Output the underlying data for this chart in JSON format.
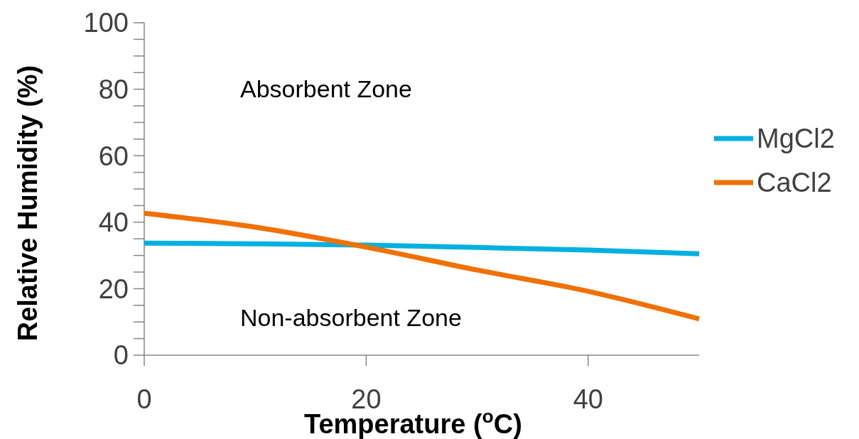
{
  "chart_data": {
    "type": "line",
    "xlabel": "Temperature ($^{o}$C)",
    "ylabel": "Relative Humidity (%)",
    "x": [
      0,
      10,
      20,
      30,
      40,
      50
    ],
    "series": [
      {
        "name": "MgCl2",
        "color": "#00b0e0",
        "values": [
          33.7,
          33.5,
          33.1,
          32.4,
          31.6,
          30.5
        ]
      },
      {
        "name": "CaCl2",
        "color": "#f07000",
        "values": [
          42.7,
          38.5,
          32.5,
          25.6,
          19.2,
          10.9
        ]
      }
    ],
    "xlim": [
      0,
      50
    ],
    "xticks": [
      0,
      20,
      40
    ],
    "ylim": [
      0,
      100
    ],
    "yticks": [
      0,
      {
        "value": 5,
        "label": null
      },
      {
        "value": 10,
        "label": null
      },
      {
        "value": 15,
        "label": null
      },
      20,
      {
        "value": 25,
        "label": null
      },
      {
        "value": 30,
        "label": null
      },
      {
        "value": 35,
        "label": null
      },
      40,
      {
        "value": 45,
        "label": null
      },
      {
        "value": 50,
        "label": null
      },
      {
        "value": 55,
        "label": null
      },
      60,
      {
        "value": 65,
        "label": null
      },
      {
        "value": 70,
        "label": null
      },
      {
        "value": 75,
        "label": null
      },
      80,
      {
        "value": 85,
        "label": null
      },
      {
        "value": 90,
        "label": null
      },
      {
        "value": 95,
        "label": null
      },
      100
    ],
    "annotations": [
      "Absorbent Zone",
      "Non-absorbent Zone"
    ],
    "legend": "right",
    "grid": false,
    "marker": "none",
    "line_style": "solid"
  }
}
